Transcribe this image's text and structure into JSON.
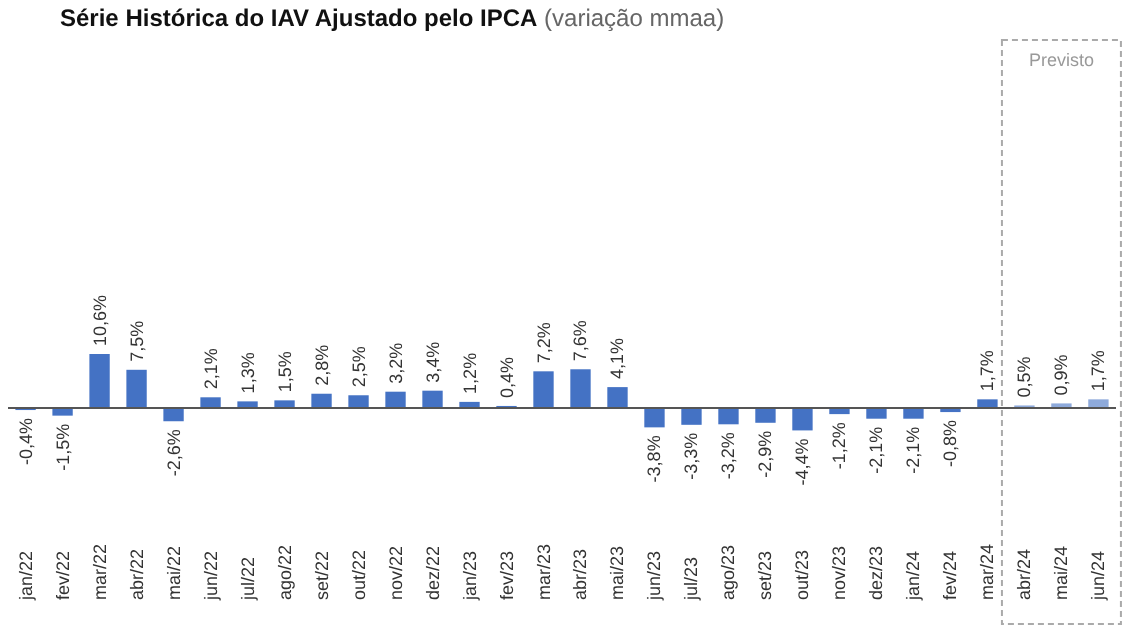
{
  "chart_data": {
    "type": "bar",
    "title": "Série Histórica do IAV Ajustado pelo IPCA",
    "subtitle": "(variação mmaa)",
    "categories": [
      "jan/22",
      "fev/22",
      "mar/22",
      "abr/22",
      "mai/22",
      "jun/22",
      "jul/22",
      "ago/22",
      "set/22",
      "out/22",
      "nov/22",
      "dez/22",
      "jan/23",
      "fev/23",
      "mar/23",
      "abr/23",
      "mai/23",
      "jun/23",
      "jul/23",
      "ago/23",
      "set/23",
      "out/23",
      "nov/23",
      "dez/23",
      "jan/24",
      "fev/24",
      "mar/24",
      "abr/24",
      "mai/24",
      "jun/24"
    ],
    "values": [
      -0.4,
      -1.5,
      10.6,
      7.5,
      -2.6,
      2.1,
      1.3,
      1.5,
      2.8,
      2.5,
      3.2,
      3.4,
      1.2,
      0.4,
      7.2,
      7.6,
      4.1,
      -3.8,
      -3.3,
      -3.2,
      -2.9,
      -4.4,
      -1.2,
      -2.1,
      -2.1,
      -0.8,
      1.7,
      0.5,
      0.9,
      1.7
    ],
    "value_labels": [
      "-0,4%",
      "-1,5%",
      "10,6%",
      "7,5%",
      "-2,6%",
      "2,1%",
      "1,3%",
      "1,5%",
      "2,8%",
      "2,5%",
      "3,2%",
      "3,4%",
      "1,2%",
      "0,4%",
      "7,2%",
      "7,6%",
      "4,1%",
      "-3,8%",
      "-3,3%",
      "-3,2%",
      "-2,9%",
      "-4,4%",
      "-1,2%",
      "-2,1%",
      "-2,1%",
      "-0,8%",
      "1,7%",
      "0,5%",
      "0,9%",
      "1,7%"
    ],
    "colors": [
      "#4472c4",
      "#4472c4",
      "#4472c4",
      "#4472c4",
      "#4472c4",
      "#4472c4",
      "#4472c4",
      "#4472c4",
      "#4472c4",
      "#4472c4",
      "#4472c4",
      "#4472c4",
      "#4472c4",
      "#4472c4",
      "#4472c4",
      "#4472c4",
      "#4472c4",
      "#4472c4",
      "#4472c4",
      "#4472c4",
      "#4472c4",
      "#4472c4",
      "#4472c4",
      "#4472c4",
      "#4472c4",
      "#4472c4",
      "#4472c4",
      "#8eaadb",
      "#8eaadb",
      "#8eaadb"
    ],
    "annotations": [
      "Previsto"
    ]
  }
}
